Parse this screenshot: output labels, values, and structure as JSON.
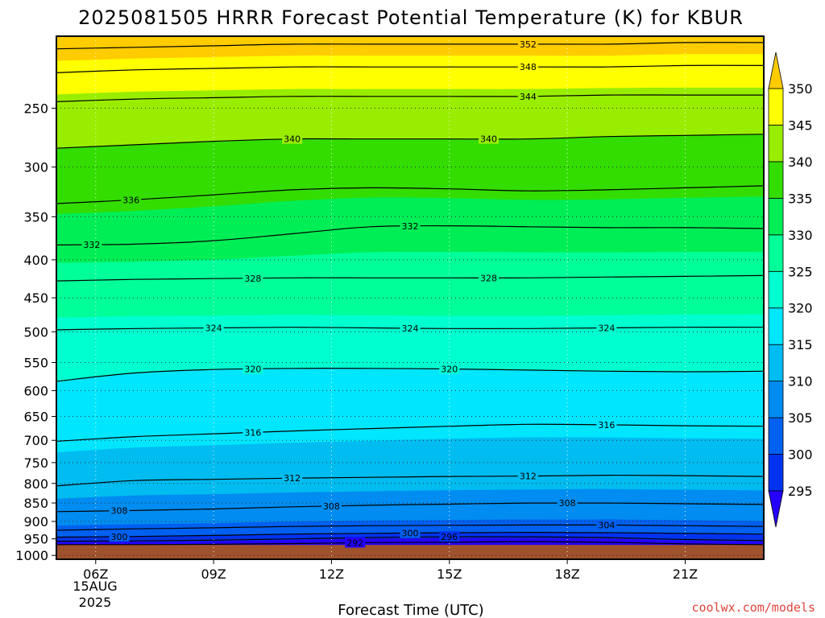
{
  "chart_data": {
    "type": "heatmap",
    "title": "2025081505 HRRR Forecast Potential Temperature (K) for KBUR",
    "xlabel": "Forecast Time (UTC)",
    "ylabel": "",
    "credit": "coolwx.com/models",
    "x_ticks": [
      "06Z",
      "09Z",
      "12Z",
      "15Z",
      "18Z",
      "21Z"
    ],
    "x_tick_hours": [
      6,
      9,
      12,
      15,
      18,
      21
    ],
    "x_range_hours": [
      5,
      23
    ],
    "date_label_line1": "15AUG",
    "date_label_line2": "2025",
    "y_ticks": [
      250,
      300,
      350,
      400,
      450,
      500,
      550,
      600,
      650,
      700,
      750,
      800,
      850,
      900,
      950,
      1000
    ],
    "y_range_hpa": [
      1012,
      200
    ],
    "y_scale": "log",
    "grid": true,
    "surface_pressure_hpa": 968,
    "colorbar": {
      "levels": [
        290,
        295,
        300,
        305,
        310,
        315,
        320,
        325,
        330,
        335,
        340,
        345,
        350,
        355
      ],
      "tick_labels": [
        "295",
        "300",
        "305",
        "310",
        "315",
        "320",
        "325",
        "330",
        "335",
        "340",
        "345",
        "350"
      ],
      "colors": [
        "#2400ff",
        "#0033f0",
        "#0060f0",
        "#008cf0",
        "#00bcf0",
        "#00e6ff",
        "#00ffd0",
        "#00ff99",
        "#00ee55",
        "#33dd00",
        "#99ee00",
        "#ffff00",
        "#ffcc00"
      ]
    },
    "forecast_hours": [
      5,
      7,
      9,
      11,
      13,
      15,
      17,
      19,
      21,
      23
    ],
    "isentropes": [
      {
        "theta": 292,
        "p": [
          967,
          967,
          966,
          964,
          961,
          960,
          958,
          960,
          965,
          967
        ]
      },
      {
        "theta": 296,
        "p": [
          957,
          956,
          954,
          950,
          946,
          944,
          944,
          946,
          952,
          955
        ]
      },
      {
        "theta": 300,
        "p": [
          945,
          943,
          940,
          936,
          934,
          932,
          931,
          932,
          934,
          936
        ]
      },
      {
        "theta": 304,
        "p": [
          925,
          921,
          918,
          914,
          912,
          911,
          910,
          910,
          912,
          914
        ]
      },
      {
        "theta": 308,
        "p": [
          873,
          870,
          866,
          860,
          856,
          853,
          850,
          850,
          852,
          854
        ]
      },
      {
        "theta": 312,
        "p": [
          806,
          793,
          790,
          787,
          785,
          783,
          782,
          780,
          781,
          783
        ]
      },
      {
        "theta": 316,
        "p": [
          702,
          692,
          686,
          680,
          675,
          670,
          666,
          667,
          669,
          670
        ]
      },
      {
        "theta": 320,
        "p": [
          583,
          568,
          562,
          560,
          560,
          561,
          563,
          565,
          566,
          565
        ]
      },
      {
        "theta": 324,
        "p": [
          497,
          495,
          494,
          493,
          494,
          495,
          495,
          494,
          493,
          493
        ]
      },
      {
        "theta": 328,
        "p": [
          427,
          425,
          424,
          423,
          423,
          423,
          423,
          422,
          421,
          420
        ]
      },
      {
        "theta": 332,
        "p": [
          382,
          381,
          377,
          369,
          361,
          360,
          361,
          362,
          362,
          363
        ]
      },
      {
        "theta": 336,
        "p": [
          336,
          332,
          327,
          322,
          320,
          321,
          323,
          322,
          320,
          318
        ]
      },
      {
        "theta": 340,
        "p": [
          283,
          280,
          277,
          275,
          275,
          275,
          275,
          273,
          272,
          271
        ]
      },
      {
        "theta": 344,
        "p": [
          245,
          243,
          242,
          241,
          241,
          241,
          241,
          240,
          240,
          240
        ]
      },
      {
        "theta": 348,
        "p": [
          224,
          222,
          221,
          220,
          220,
          220,
          220,
          220,
          219,
          219
        ]
      },
      {
        "theta": 352,
        "p": [
          208,
          207,
          206,
          205,
          205,
          205,
          205,
          205,
          204,
          204
        ]
      }
    ],
    "contour_labels": [
      {
        "text": "352",
        "hour": 17.0,
        "theta": 352
      },
      {
        "text": "348",
        "hour": 17.0,
        "theta": 348
      },
      {
        "text": "344",
        "hour": 17.0,
        "theta": 344
      },
      {
        "text": "340",
        "hour": 11.0,
        "theta": 340
      },
      {
        "text": "340",
        "hour": 16.0,
        "theta": 340
      },
      {
        "text": "336",
        "hour": 6.9,
        "theta": 336
      },
      {
        "text": "332",
        "hour": 5.9,
        "theta": 332
      },
      {
        "text": "332",
        "hour": 14.0,
        "theta": 332
      },
      {
        "text": "328",
        "hour": 10.0,
        "theta": 328
      },
      {
        "text": "328",
        "hour": 16.0,
        "theta": 328
      },
      {
        "text": "324",
        "hour": 9.0,
        "theta": 324
      },
      {
        "text": "324",
        "hour": 14.0,
        "theta": 324
      },
      {
        "text": "324",
        "hour": 19.0,
        "theta": 324
      },
      {
        "text": "320",
        "hour": 10.0,
        "theta": 320
      },
      {
        "text": "320",
        "hour": 15.0,
        "theta": 320
      },
      {
        "text": "316",
        "hour": 10.0,
        "theta": 316
      },
      {
        "text": "316",
        "hour": 19.0,
        "theta": 316
      },
      {
        "text": "312",
        "hour": 11.0,
        "theta": 312
      },
      {
        "text": "312",
        "hour": 17.0,
        "theta": 312
      },
      {
        "text": "308",
        "hour": 6.6,
        "theta": 308
      },
      {
        "text": "308",
        "hour": 12.0,
        "theta": 308
      },
      {
        "text": "308",
        "hour": 18.0,
        "theta": 308
      },
      {
        "text": "304",
        "hour": 19.0,
        "theta": 304
      },
      {
        "text": "300",
        "hour": 6.6,
        "theta": 300
      },
      {
        "text": "300",
        "hour": 14.0,
        "theta": 300
      },
      {
        "text": "296",
        "hour": 15.0,
        "theta": 296
      },
      {
        "text": "292",
        "hour": 12.6,
        "theta": 292
      }
    ]
  }
}
